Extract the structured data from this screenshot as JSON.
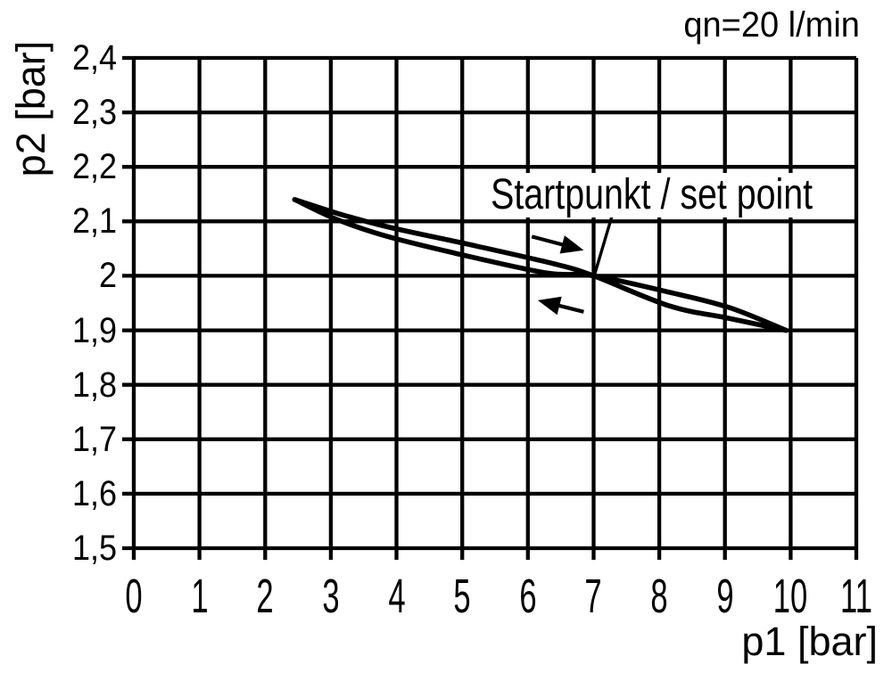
{
  "chart_data": {
    "type": "line",
    "flow_label": "qn=20 l/min",
    "xlabel": "p1 [bar]",
    "ylabel": "p2 [bar]",
    "xlim": [
      0,
      11
    ],
    "ylim": [
      1.5,
      2.4
    ],
    "grid": true,
    "x_tick_values": [
      0,
      1,
      2,
      3,
      4,
      5,
      6,
      7,
      8,
      9,
      10,
      11
    ],
    "x_tick_labels": [
      "0",
      "1",
      "2",
      "3",
      "4",
      "5",
      "6",
      "7",
      "8",
      "9",
      "10",
      "11"
    ],
    "y_tick_values": [
      2.4,
      2.3,
      2.2,
      2.1,
      2.0,
      1.9,
      1.8,
      1.7,
      1.6,
      1.5
    ],
    "y_tick_labels": [
      "2,4",
      "2,3",
      "2,2",
      "2,1",
      "2",
      "1,9",
      "1,8",
      "1,7",
      "1,6",
      "1,5"
    ],
    "annotation": {
      "text": "Startpunkt / set point",
      "target_point": [
        7.0,
        2.0
      ]
    },
    "set_point": [
      7.0,
      2.0
    ],
    "series": [
      {
        "name": "hysteresis-branch-outbound",
        "points": [
          [
            2.45,
            2.14
          ],
          [
            3.2,
            2.111
          ],
          [
            3.9,
            2.089
          ],
          [
            5.2,
            2.055
          ],
          [
            6.4,
            2.022
          ],
          [
            7.0,
            2.0
          ],
          [
            8.15,
            1.945
          ],
          [
            9.06,
            1.922
          ],
          [
            9.93,
            1.9
          ]
        ]
      },
      {
        "name": "hysteresis-branch-return",
        "points": [
          [
            2.45,
            2.14
          ],
          [
            3.1,
            2.103
          ],
          [
            3.9,
            2.071
          ],
          [
            5.2,
            2.033
          ],
          [
            6.3,
            2.005
          ],
          [
            7.0,
            2.0
          ],
          [
            8.15,
            1.97
          ],
          [
            9.06,
            1.942
          ],
          [
            9.93,
            1.9
          ]
        ]
      }
    ],
    "direction_arrows": [
      {
        "name": "direction-arrow-right",
        "from": [
          6.06,
          2.072
        ],
        "to": [
          6.85,
          2.047
        ]
      },
      {
        "name": "direction-arrow-left",
        "from": [
          6.85,
          1.934
        ],
        "to": [
          6.15,
          1.955
        ]
      }
    ],
    "leader_line": {
      "from": [
        7.29,
        2.114
      ],
      "to": [
        7.02,
        2.004
      ]
    },
    "colors": {
      "line": "#000000",
      "grid": "#000000",
      "background": "#ffffff",
      "text": "#000000"
    }
  }
}
